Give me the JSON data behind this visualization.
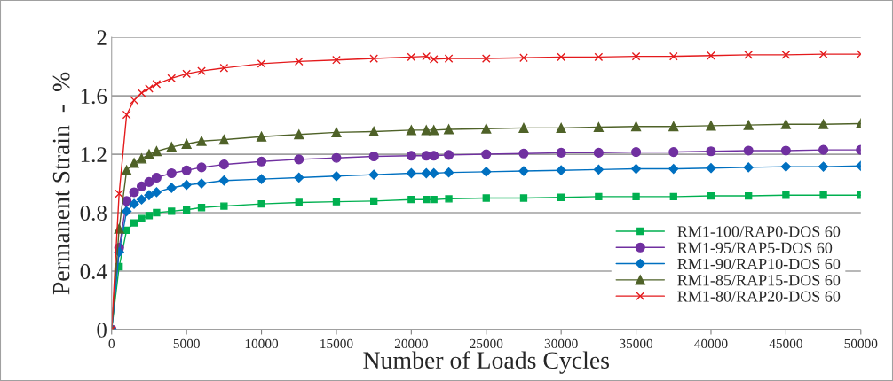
{
  "chart_data": {
    "type": "line",
    "xlabel": "Number of Loads Cycles",
    "ylabel": "Permanent Strain  -  %",
    "x": [
      0,
      500,
      1000,
      1500,
      2000,
      2500,
      3000,
      4000,
      5000,
      6000,
      7500,
      10000,
      12500,
      15000,
      17500,
      20000,
      21000,
      21500,
      22500,
      25000,
      27500,
      30000,
      32500,
      35000,
      37500,
      40000,
      42500,
      45000,
      47500,
      50000
    ],
    "xlim": [
      0,
      50000
    ],
    "xticks": [
      0,
      5000,
      10000,
      15000,
      20000,
      25000,
      30000,
      35000,
      40000,
      45000,
      50000
    ],
    "ylim": [
      0,
      2
    ],
    "yticks": [
      0,
      0.4,
      0.8,
      1.2,
      1.6,
      2
    ],
    "grid": "y",
    "legend": "bottom right",
    "series": [
      {
        "name": "RM1-100/RAP0-DOS 60",
        "color": "#00b050",
        "marker": "square",
        "values": [
          0,
          0.43,
          0.68,
          0.73,
          0.76,
          0.78,
          0.8,
          0.81,
          0.82,
          0.835,
          0.845,
          0.86,
          0.87,
          0.875,
          0.88,
          0.89,
          0.89,
          0.89,
          0.895,
          0.9,
          0.9,
          0.905,
          0.91,
          0.91,
          0.91,
          0.915,
          0.915,
          0.92,
          0.92,
          0.92
        ]
      },
      {
        "name": "RM1-95/RAP5-DOS 60",
        "color": "#7030a0",
        "marker": "circle",
        "values": [
          0,
          0.56,
          0.88,
          0.94,
          0.98,
          1.01,
          1.04,
          1.07,
          1.09,
          1.11,
          1.13,
          1.15,
          1.165,
          1.175,
          1.185,
          1.19,
          1.19,
          1.19,
          1.195,
          1.2,
          1.205,
          1.21,
          1.21,
          1.215,
          1.215,
          1.22,
          1.225,
          1.225,
          1.23,
          1.23
        ]
      },
      {
        "name": "RM1-90/RAP10-DOS 60",
        "color": "#0070c0",
        "marker": "diamond",
        "values": [
          0,
          0.53,
          0.81,
          0.86,
          0.89,
          0.92,
          0.94,
          0.97,
          0.99,
          1.0,
          1.02,
          1.03,
          1.04,
          1.05,
          1.06,
          1.07,
          1.07,
          1.07,
          1.075,
          1.08,
          1.085,
          1.09,
          1.095,
          1.1,
          1.1,
          1.105,
          1.11,
          1.115,
          1.115,
          1.12
        ]
      },
      {
        "name": "RM1-85/RAP15-DOS 60",
        "color": "#4f6228",
        "marker": "triangle",
        "values": [
          0,
          0.69,
          1.09,
          1.14,
          1.17,
          1.2,
          1.22,
          1.25,
          1.27,
          1.29,
          1.3,
          1.32,
          1.335,
          1.35,
          1.355,
          1.365,
          1.365,
          1.365,
          1.37,
          1.375,
          1.38,
          1.38,
          1.385,
          1.39,
          1.39,
          1.395,
          1.4,
          1.405,
          1.405,
          1.41
        ]
      },
      {
        "name": "RM1-80/RAP20-DOS 60",
        "color": "#e41a1c",
        "marker": "cross",
        "values": [
          0,
          0.93,
          1.47,
          1.57,
          1.62,
          1.65,
          1.68,
          1.72,
          1.75,
          1.77,
          1.79,
          1.82,
          1.835,
          1.845,
          1.855,
          1.865,
          1.87,
          1.85,
          1.855,
          1.855,
          1.86,
          1.865,
          1.865,
          1.87,
          1.87,
          1.875,
          1.88,
          1.88,
          1.885,
          1.885
        ]
      }
    ]
  }
}
